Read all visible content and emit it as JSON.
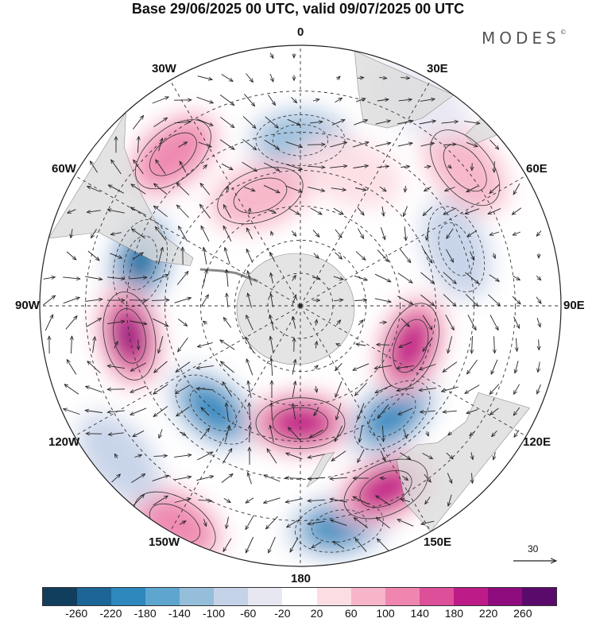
{
  "title": "Base 29/06/2025 00 UTC, valid 09/07/2025 00 UTC",
  "brand": "MODES",
  "brand_mark": "©",
  "projection": "south-polar-stereographic",
  "longitude_labels": [
    {
      "text": "0",
      "lon": 0
    },
    {
      "text": "30E",
      "lon": 30
    },
    {
      "text": "60E",
      "lon": 60
    },
    {
      "text": "90E",
      "lon": 90
    },
    {
      "text": "120E",
      "lon": 120
    },
    {
      "text": "150E",
      "lon": 150
    },
    {
      "text": "180",
      "lon": 180
    },
    {
      "text": "150W",
      "lon": -150
    },
    {
      "text": "120W",
      "lon": -120
    },
    {
      "text": "90W",
      "lon": -90
    },
    {
      "text": "60W",
      "lon": -60
    },
    {
      "text": "30W",
      "lon": -30
    }
  ],
  "latitude_circles": [
    -80,
    -70,
    -60,
    -50,
    -40,
    -30,
    -20
  ],
  "colorbar": {
    "levels": [
      "-260",
      "-220",
      "-180",
      "-140",
      "-100",
      "-60",
      "-20",
      "20",
      "60",
      "100",
      "140",
      "180",
      "220",
      "260"
    ],
    "colors": [
      "#123e5e",
      "#1c6596",
      "#2e87bd",
      "#5ea6cf",
      "#95bedb",
      "#c5d3e8",
      "#e7e7f2",
      "#ffffff",
      "#fcdde4",
      "#f6b5c8",
      "#ee86b0",
      "#de4f99",
      "#bd1b87",
      "#8e0c7e",
      "#5a0a6b"
    ]
  },
  "vector_reference": {
    "label": "30"
  },
  "anomaly_centres": [
    {
      "lon": -75,
      "lat": -42,
      "sign": "neg",
      "strength": 250
    },
    {
      "lon": -100,
      "lat": -40,
      "sign": "pos",
      "strength": 240
    },
    {
      "lon": -140,
      "lat": -50,
      "sign": "neg",
      "strength": 230
    },
    {
      "lon": 180,
      "lat": -55,
      "sign": "pos",
      "strength": 220
    },
    {
      "lon": 170,
      "lat": -28,
      "sign": "neg",
      "strength": 210
    },
    {
      "lon": 155,
      "lat": -33,
      "sign": "pos",
      "strength": 200
    },
    {
      "lon": 140,
      "lat": -48,
      "sign": "neg",
      "strength": 220
    },
    {
      "lon": 110,
      "lat": -55,
      "sign": "pos",
      "strength": 220
    },
    {
      "lon": 70,
      "lat": -42,
      "sign": "neg",
      "strength": 110
    },
    {
      "lon": 50,
      "lat": -30,
      "sign": "pos",
      "strength": 110
    },
    {
      "lon": 0,
      "lat": -42,
      "sign": "neg",
      "strength": 130
    },
    {
      "lon": -40,
      "lat": -34,
      "sign": "pos",
      "strength": 120
    },
    {
      "lon": -20,
      "lat": -55,
      "sign": "pos",
      "strength": 110
    },
    {
      "lon": 20,
      "lat": -48,
      "sign": "pos",
      "strength": 60
    },
    {
      "lon": -150,
      "lat": -22,
      "sign": "pos",
      "strength": 120
    },
    {
      "lon": -130,
      "lat": -25,
      "sign": "neg",
      "strength": 90
    },
    {
      "lon": 30,
      "lat": -25,
      "sign": "neg",
      "strength": 50
    }
  ]
}
